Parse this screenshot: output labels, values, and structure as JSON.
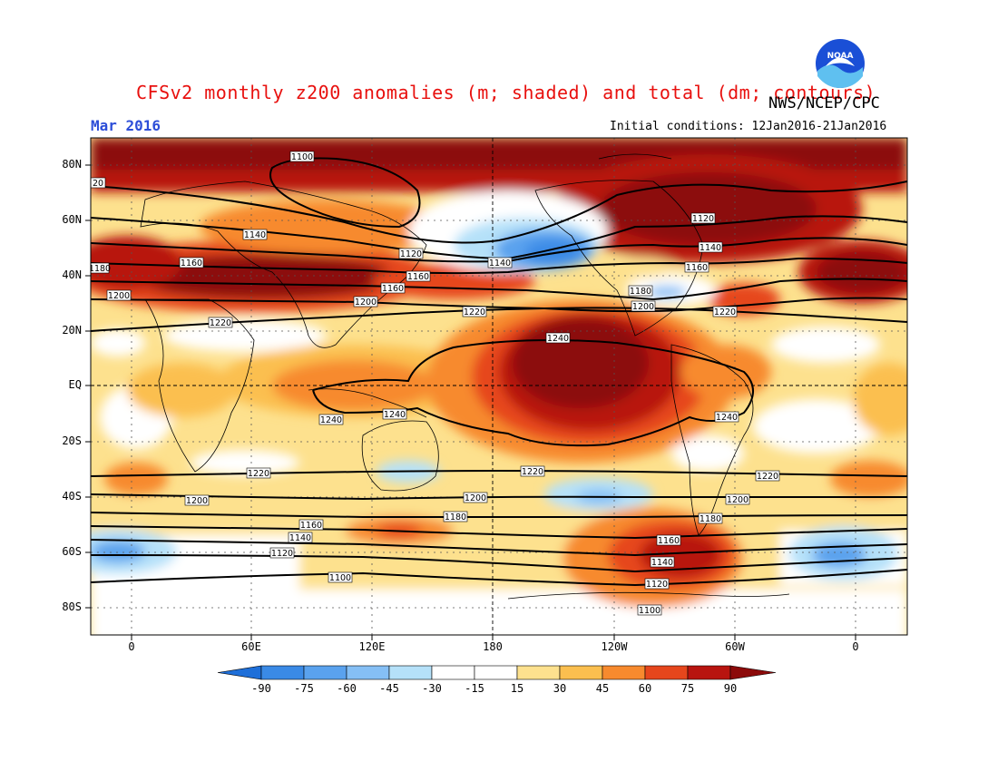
{
  "header": {
    "title": "CFSv2 monthly z200 anomalies (m; shaded) and total (dm; contours)",
    "org": "NWS/NCEP/CPC",
    "month": "Mar 2016",
    "initial_conditions": "Initial conditions: 12Jan2016-21Jan2016",
    "logo_text": "NOAA"
  },
  "map": {
    "lat_labels": [
      "80N",
      "60N",
      "40N",
      "20N",
      "EQ",
      "20S",
      "40S",
      "60S",
      "80S"
    ],
    "lon_labels": [
      "0",
      "60E",
      "120E",
      "180",
      "120W",
      "60W",
      "0"
    ],
    "contour_labels": [
      {
        "text": "1100",
        "k": 0
      },
      {
        "text": "20",
        "k": 1
      },
      {
        "text": "1140",
        "k": 2
      },
      {
        "text": "1160",
        "k": 3
      },
      {
        "text": "1180",
        "k": 4
      },
      {
        "text": "1200",
        "k": 5
      },
      {
        "text": "1120",
        "k": 6
      },
      {
        "text": "1160",
        "k": 7
      },
      {
        "text": "1160",
        "k": 8
      },
      {
        "text": "1200",
        "k": 9
      },
      {
        "text": "1220",
        "k": 10
      },
      {
        "text": "1140",
        "k": 11
      },
      {
        "text": "1120",
        "k": 12
      },
      {
        "text": "1140",
        "k": 13
      },
      {
        "text": "1160",
        "k": 14
      },
      {
        "text": "1180",
        "k": 15
      },
      {
        "text": "1200",
        "k": 16
      },
      {
        "text": "1220",
        "k": 17
      },
      {
        "text": "1220",
        "k": 18
      },
      {
        "text": "1240",
        "k": 19
      },
      {
        "text": "1240",
        "k": 20
      },
      {
        "text": "1240",
        "k": 21
      },
      {
        "text": "1240",
        "k": 22
      },
      {
        "text": "1220",
        "k": 23
      },
      {
        "text": "1200",
        "k": 24
      },
      {
        "text": "1220",
        "k": 25
      },
      {
        "text": "1220",
        "k": 26
      },
      {
        "text": "1200",
        "k": 27
      },
      {
        "text": "1180",
        "k": 28
      },
      {
        "text": "1160",
        "k": 29
      },
      {
        "text": "1140",
        "k": 30
      },
      {
        "text": "1120",
        "k": 31
      },
      {
        "text": "1100",
        "k": 32
      },
      {
        "text": "1200",
        "k": 33
      },
      {
        "text": "1180",
        "k": 34
      },
      {
        "text": "1160",
        "k": 35
      },
      {
        "text": "1140",
        "k": 36
      },
      {
        "text": "1120",
        "k": 37
      },
      {
        "text": "1100",
        "k": 38
      }
    ]
  },
  "colorbar": {
    "labels": [
      "-90",
      "-75",
      "-60",
      "-45",
      "-30",
      "-15",
      "15",
      "30",
      "45",
      "60",
      "75",
      "90"
    ],
    "colors": [
      "#1e6fd9",
      "#3a8ae6",
      "#5aa2ee",
      "#85bff5",
      "#b5e1f9",
      "#ffffff",
      "#ffffff",
      "#fde18e",
      "#fbbf4f",
      "#f78a2e",
      "#e6461c",
      "#b8140f",
      "#8c0a0a"
    ]
  },
  "anomaly_colors": {
    "cb5": "#ffffff",
    "w15": "#fde18e",
    "w30": "#fbbf4f",
    "w45": "#f78a2e",
    "w60": "#e6461c",
    "w75": "#b8140f",
    "w90": "#8c0a0a",
    "c15": "#b5e1f9",
    "c30": "#85bff5",
    "c45": "#5aa2ee",
    "c60": "#3a8ae6"
  }
}
